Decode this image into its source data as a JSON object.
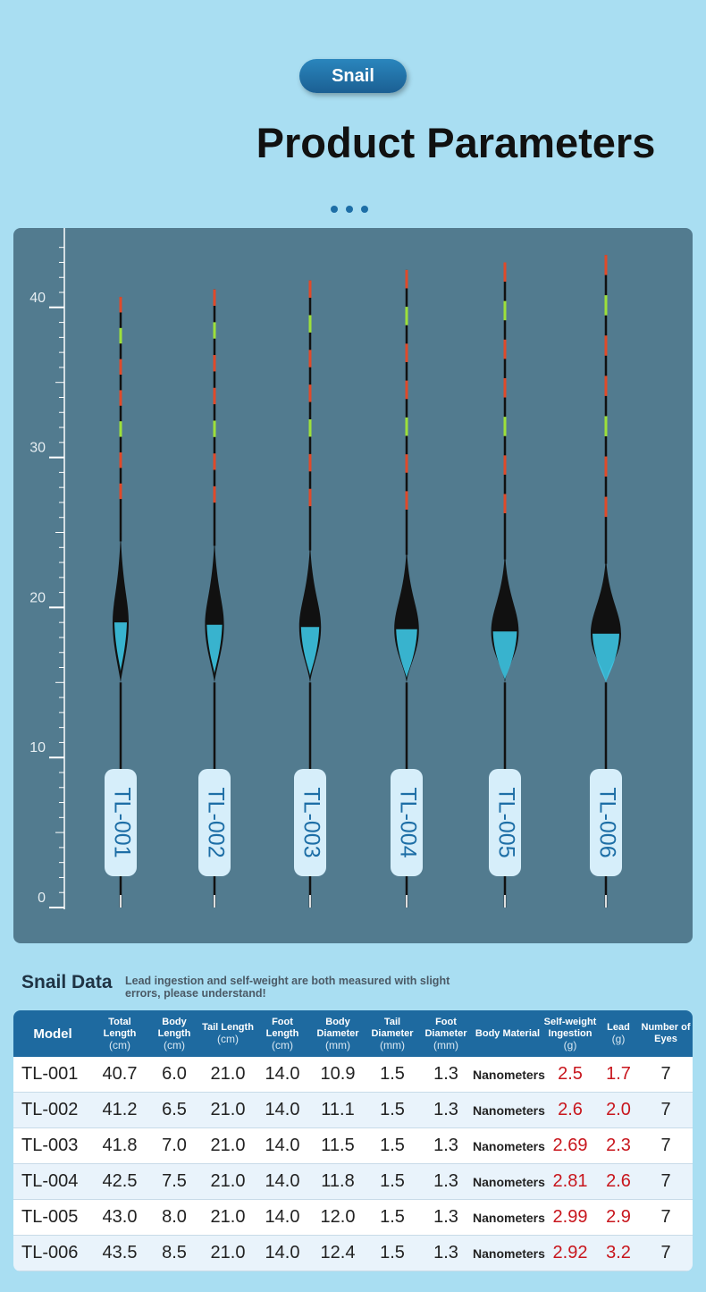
{
  "badge": "Snail",
  "title": "Product Parameters",
  "ruler": {
    "ticks": [
      0,
      10,
      20,
      30,
      40
    ]
  },
  "floats": [
    "TL-001",
    "TL-002",
    "TL-003",
    "TL-004",
    "TL-005",
    "TL-006"
  ],
  "table_title": "Snail Data",
  "note": "Lead ingestion and self-weight are both measured with slight errors, please understand!",
  "table": {
    "header": [
      {
        "name": "Model"
      },
      {
        "name": "Total Length",
        "unit": "(cm)"
      },
      {
        "name": "Body Length",
        "unit": "(cm)"
      },
      {
        "name": "Tail Length",
        "unit": "(cm)"
      },
      {
        "name": "Foot Length",
        "unit": "(cm)"
      },
      {
        "name": "Body Diameter",
        "unit": "(mm)"
      },
      {
        "name": "Tail Diameter",
        "unit": "(mm)"
      },
      {
        "name": "Foot Diameter",
        "unit": "(mm)"
      },
      {
        "name": "Body Material"
      },
      {
        "name": "Self-weight Ingestion",
        "unit": "(g)"
      },
      {
        "name": "Lead",
        "unit": "(g)"
      },
      {
        "name": "Number of Eyes"
      }
    ],
    "rows": [
      [
        "TL-001",
        "40.7",
        "6.0",
        "21.0",
        "14.0",
        "10.9",
        "1.5",
        "1.3",
        "Nanometers",
        "2.5",
        "1.7",
        "7"
      ],
      [
        "TL-002",
        "41.2",
        "6.5",
        "21.0",
        "14.0",
        "11.1",
        "1.5",
        "1.3",
        "Nanometers",
        "2.6",
        "2.0",
        "7"
      ],
      [
        "TL-003",
        "41.8",
        "7.0",
        "21.0",
        "14.0",
        "11.5",
        "1.5",
        "1.3",
        "Nanometers",
        "2.69",
        "2.3",
        "7"
      ],
      [
        "TL-004",
        "42.5",
        "7.5",
        "21.0",
        "14.0",
        "11.8",
        "1.5",
        "1.3",
        "Nanometers",
        "2.81",
        "2.6",
        "7"
      ],
      [
        "TL-005",
        "43.0",
        "8.0",
        "21.0",
        "14.0",
        "12.0",
        "1.5",
        "1.3",
        "Nanometers",
        "2.99",
        "2.9",
        "7"
      ],
      [
        "TL-006",
        "43.5",
        "8.5",
        "21.0",
        "14.0",
        "12.4",
        "1.5",
        "1.3",
        "Nanometers",
        "2.92",
        "3.2",
        "7"
      ]
    ]
  }
}
